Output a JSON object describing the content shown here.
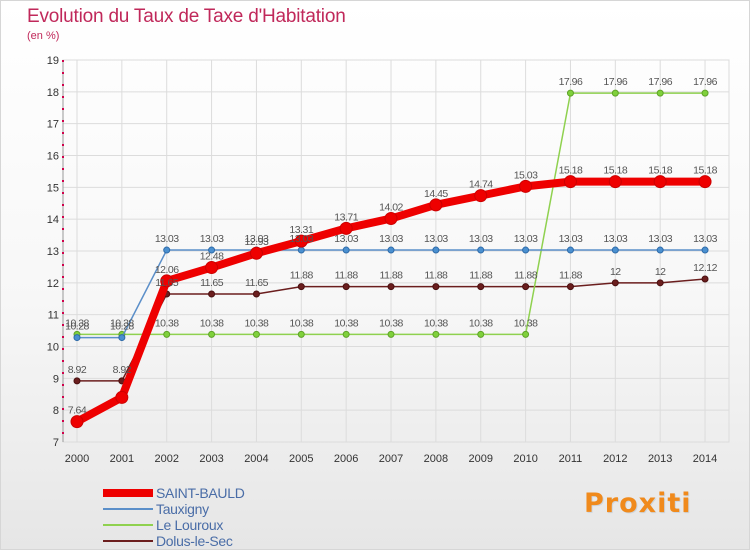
{
  "header": {
    "title": "Evolution du Taux de Taxe d'Habitation",
    "unit": "(en %)"
  },
  "chart_data": {
    "type": "line",
    "title": "Evolution du Taux de Taxe d'Habitation",
    "ylabel": "(en %)",
    "xlabel": "",
    "x": [
      "2000",
      "2001",
      "2002",
      "2003",
      "2004",
      "2005",
      "2006",
      "2007",
      "2008",
      "2009",
      "2010",
      "2011",
      "2012",
      "2013",
      "2014"
    ],
    "y_ticks": [
      "7",
      "8",
      "9",
      "10",
      "11",
      "12",
      "13",
      "14",
      "15",
      "16",
      "17",
      "18",
      "19"
    ],
    "ylim": [
      7,
      19
    ],
    "grid": true,
    "legend_position": "bottom-left",
    "series": [
      {
        "name": "SAINT-BAULD",
        "color": "#ee0000",
        "values": [
          7.64,
          8.4,
          12.06,
          12.48,
          12.93,
          13.31,
          13.71,
          14.02,
          14.45,
          14.74,
          15.03,
          15.18,
          15.18,
          15.18,
          15.18
        ],
        "labels": [
          "7.64",
          "",
          "12.06",
          "12.48",
          "12.93",
          "13.31",
          "13.71",
          "14.02",
          "14.45",
          "14.74",
          "15.03",
          "15.18",
          "15.18",
          "15.18",
          "15.18"
        ]
      },
      {
        "name": "Tauxigny",
        "color": "#5b8fc9",
        "values": [
          10.28,
          10.28,
          13.03,
          13.03,
          13.03,
          13.03,
          13.03,
          13.03,
          13.03,
          13.03,
          13.03,
          13.03,
          13.03,
          13.03,
          13.03
        ],
        "labels": [
          "10.28",
          "10.28",
          "13.03",
          "13.03",
          "13.03",
          "13.03",
          "13.03",
          "13.03",
          "13.03",
          "13.03",
          "13.03",
          "13.03",
          "13.03",
          "13.03",
          "13.03"
        ]
      },
      {
        "name": "Le Louroux",
        "color": "#8fd14f",
        "values": [
          10.38,
          10.38,
          10.38,
          10.38,
          10.38,
          10.38,
          10.38,
          10.38,
          10.38,
          10.38,
          10.38,
          17.96,
          17.96,
          17.96,
          17.96
        ],
        "labels": [
          "10.38",
          "10.38",
          "10.38",
          "10.38",
          "10.38",
          "10.38",
          "10.38",
          "10.38",
          "10.38",
          "10.38",
          "10.38",
          "17.96",
          "17.96",
          "17.96",
          "17.96"
        ]
      },
      {
        "name": "Dolus-le-Sec",
        "color": "#6b1e1e",
        "values": [
          8.92,
          8.92,
          11.65,
          11.65,
          11.65,
          11.88,
          11.88,
          11.88,
          11.88,
          11.88,
          11.88,
          11.88,
          12,
          12,
          12.12
        ],
        "labels": [
          "8.92",
          "8.92",
          "11.65",
          "11.65",
          "11.65",
          "11.88",
          "11.88",
          "11.88",
          "11.88",
          "11.88",
          "11.88",
          "11.88",
          "12",
          "12",
          "12.12"
        ]
      }
    ]
  },
  "branding": {
    "logo_text": "Proxiti"
  }
}
